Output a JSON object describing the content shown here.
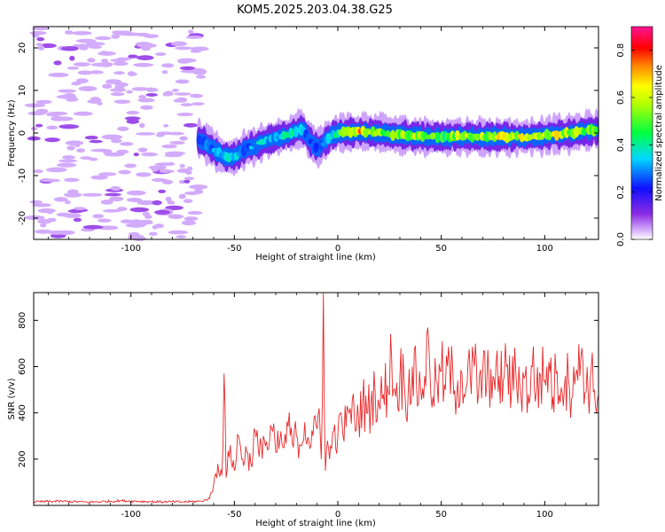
{
  "title": "KOM5.2025.203.04.38.G25",
  "chart_data": [
    {
      "type": "heatmap",
      "xlabel": "Height of straight line (km)",
      "ylabel": "Frequency (Hz)",
      "xlim": [
        -147,
        126
      ],
      "ylim": [
        -25,
        25
      ],
      "xticks": [
        -100,
        -50,
        0,
        50,
        100
      ],
      "xtick_labels": [
        "-100",
        "-50",
        "0",
        "50",
        "100"
      ],
      "yticks": [
        -20,
        -10,
        0,
        10,
        20
      ],
      "ytick_labels": [
        "-20",
        "-10",
        "0",
        "10",
        "20"
      ],
      "colorbar": {
        "label": "Normalized spectral amplitude",
        "range": [
          0,
          0.9
        ],
        "ticks": [
          0.0,
          0.2,
          0.4,
          0.6,
          0.8
        ],
        "tick_labels": [
          "0.0",
          "0.2",
          "0.4",
          "0.6",
          "0.8"
        ]
      },
      "noise_region_x": [
        -147,
        -66
      ],
      "ridge": {
        "x": [
          -67,
          -62,
          -58,
          -55,
          -52,
          -48,
          -44,
          -40,
          -36,
          -32,
          -28,
          -24,
          -20,
          -17,
          -14,
          -10,
          -7,
          -4,
          0,
          10,
          20,
          30,
          40,
          50,
          60,
          70,
          80,
          90,
          100,
          110,
          126
        ],
        "freq": [
          -1.5,
          -3,
          -4.5,
          -5.5,
          -5.8,
          -5,
          -3.5,
          -3,
          -2,
          -1.5,
          -1,
          -0.5,
          0.5,
          1,
          -1.5,
          -3.5,
          -2.5,
          -1,
          0,
          0.3,
          0,
          -0.5,
          -0.8,
          -1,
          -0.8,
          -1,
          -0.8,
          -1,
          -0.6,
          -0.2,
          0.8
        ],
        "amplitude": [
          0.3,
          0.35,
          0.4,
          0.38,
          0.45,
          0.4,
          0.35,
          0.42,
          0.45,
          0.4,
          0.45,
          0.5,
          0.5,
          0.45,
          0.3,
          0.3,
          0.35,
          0.4,
          0.55,
          0.9,
          0.7,
          0.7,
          0.75,
          0.6,
          0.75,
          0.7,
          0.8,
          0.75,
          0.8,
          0.75,
          0.7
        ]
      }
    },
    {
      "type": "line",
      "xlabel": "Height of straight line (km)",
      "ylabel": "SNR (v/v)",
      "xlim": [
        -147,
        126
      ],
      "ylim": [
        0,
        920
      ],
      "xticks": [
        -100,
        -50,
        0,
        50,
        100
      ],
      "xtick_labels": [
        "-100",
        "-50",
        "0",
        "50",
        "100"
      ],
      "yticks": [
        200,
        400,
        600,
        800
      ],
      "ytick_labels": [
        "200",
        "400",
        "600",
        "800"
      ],
      "series": [
        {
          "color": "#e8282a",
          "x": [
            -147,
            -135,
            -120,
            -105,
            -90,
            -75,
            -66,
            -62,
            -60,
            -58,
            -56,
            -55,
            -54,
            -52,
            -50,
            -48,
            -46,
            -44,
            -42,
            -40,
            -38,
            -36,
            -34,
            -32,
            -30,
            -28,
            -26,
            -24,
            -22,
            -20,
            -18,
            -16,
            -14,
            -12,
            -10,
            -9,
            -8,
            -7,
            -6,
            -5,
            -4,
            -2,
            0,
            2,
            4,
            6,
            8,
            10,
            12,
            14,
            16,
            18,
            20,
            22,
            24,
            26,
            28,
            30,
            32,
            34,
            36,
            38,
            40,
            42,
            44,
            46,
            48,
            50,
            52,
            54,
            56,
            58,
            60,
            62,
            64,
            66,
            68,
            70,
            72,
            74,
            76,
            78,
            80,
            82,
            84,
            86,
            88,
            90,
            92,
            94,
            96,
            98,
            100,
            102,
            104,
            106,
            108,
            110,
            112,
            114,
            116,
            118,
            120,
            122,
            124,
            126
          ],
          "y": [
            15,
            18,
            14,
            20,
            16,
            15,
            18,
            30,
            90,
            180,
            130,
            570,
            120,
            260,
            150,
            300,
            200,
            230,
            180,
            320,
            210,
            300,
            240,
            330,
            230,
            280,
            250,
            340,
            270,
            300,
            260,
            360,
            280,
            300,
            330,
            420,
            200,
            920,
            150,
            280,
            200,
            320,
            300,
            360,
            340,
            420,
            380,
            380,
            450,
            400,
            440,
            500,
            430,
            480,
            520,
            640,
            470,
            560,
            540,
            480,
            600,
            520,
            510,
            560,
            690,
            470,
            530,
            580,
            500,
            620,
            480,
            540,
            570,
            510,
            560,
            600,
            480,
            570,
            520,
            590,
            500,
            560,
            540,
            610,
            490,
            580,
            520,
            550,
            480,
            600,
            500,
            560,
            540,
            620,
            470,
            580,
            510,
            560,
            500,
            600,
            540,
            680,
            490,
            550,
            500,
            480
          ]
        }
      ]
    }
  ]
}
